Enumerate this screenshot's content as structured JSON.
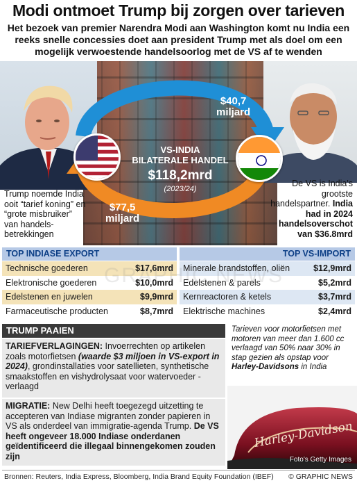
{
  "header": {
    "title": "Modi ontmoet Trump bij zorgen over tarieven",
    "subtitle": "Het bezoek van premier Narendra Modi aan Washington komt nu India een reeks snelle concessies doet aan president Trump met als doel om een mogelijk verwoestende handelsoorlog met de VS af te wenden"
  },
  "trade": {
    "label_line1": "VS-INDIA",
    "label_line2": "BILATERALE HANDEL",
    "total": "$118,2mrd",
    "year": "(2023/24)",
    "us_to_india": "$40,7",
    "us_to_india_unit": "miljard",
    "india_to_us": "$77,5",
    "india_to_us_unit": "miljard"
  },
  "captions": {
    "trump": "Trump noemde India ooit “tarief koning” en “grote misbruiker” van handels-betrekkingen",
    "modi_plain": "De VS is India's grootste handelspartner.",
    "modi_bold": "India had in 2024 handelsoverschot van $36.8mrd"
  },
  "exports": {
    "heading": "TOP INDIASE EXPORT",
    "rows": [
      {
        "label": "Technische goederen",
        "value": "$17,6mrd"
      },
      {
        "label": "Elektronische goederen",
        "value": "$10,0mrd"
      },
      {
        "label": "Edelstenen en juwelen",
        "value": "$9,9mrd"
      },
      {
        "label": "Farmaceutische producten",
        "value": "$8,7mrd"
      }
    ]
  },
  "imports": {
    "heading": "TOP VS-IMPORT",
    "rows": [
      {
        "label": "Minerale brandstoffen, oliën",
        "value": "$12,9mrd"
      },
      {
        "label": "Edelstenen & parels",
        "value": "$5,2mrd"
      },
      {
        "label": "Kernreactoren & ketels",
        "value": "$3,7mrd"
      },
      {
        "label": "Elektrische machines",
        "value": "$2,4mrd"
      }
    ]
  },
  "appease": {
    "heading": "TRUMP PAAIEN",
    "tariff_title": "TARIEFVERLAGINGEN:",
    "tariff_text1": " Invoerrechten op artikelen zoals motorfietsen ",
    "tariff_em": "(waarde $3 miljoen in VS-export in 2024)",
    "tariff_text2": ", grondinstallaties voor satellieten, synthetische smaakstoffen en vishydrolysaat voor watervoeder - verlaagd",
    "migration_title": "MIGRATIE:",
    "migration_text": " New Delhi heeft toegezegd uitzetting te accepteren van Indiase migranten zonder papieren in VS als onderdeel van immigratie-agenda Trump.",
    "migration_bold": "De VS heeft ongeveer 18.000 Indiase onderdanen geïdentificeerd die illegaal binnengekomen zouden zijn"
  },
  "motorcycle": {
    "caption1": "Tarieven voor motorfietsen met motoren van meer dan 1.600 cc verlaagd van 50% naar 30% in stap gezien als opstap voor ",
    "caption_brand": "Harley-Davidsons",
    "caption2": " in India",
    "tank_text": "Harley-Davidson",
    "photo_credit": "Foto's Getty Images"
  },
  "footer": {
    "sources": "Bronnen: Reuters, India Express, Bloomberg, India Brand Equity Foundation (IBEF)",
    "brand": "© GRAPHIC NEWS"
  },
  "watermark": "GRAPHIC NEWS",
  "colors": {
    "arrow_blue": "#1f8fd6",
    "arrow_orange": "#f08a24",
    "table_head": "#b6c9e6",
    "export_row": "#f4e3b8",
    "import_row": "#dde7f3",
    "dark_head": "#3a3a3a",
    "box_grey": "#e9e9e9"
  }
}
